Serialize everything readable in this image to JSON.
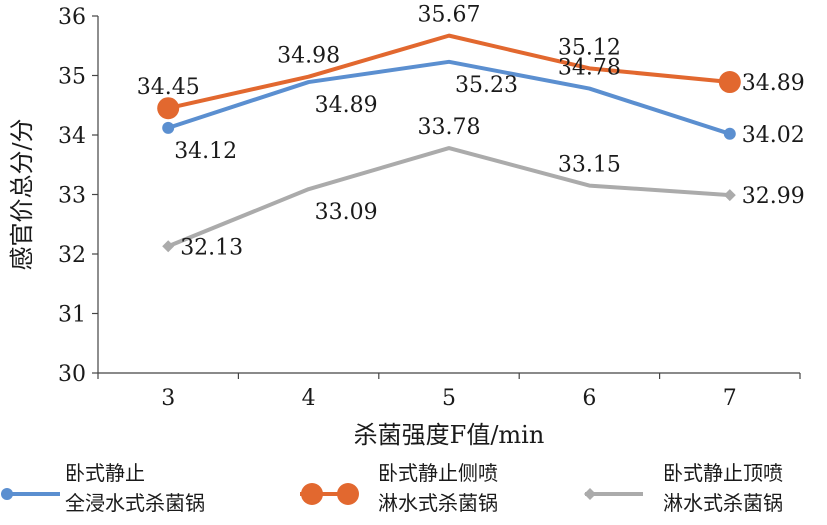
{
  "chart_data": {
    "type": "line",
    "xlabel": "杀菌强度F值/min",
    "ylabel": "感官价总分/分",
    "x": [
      3,
      4,
      5,
      6,
      7
    ],
    "ylim": [
      30,
      36
    ],
    "yticks": [
      30,
      31,
      32,
      33,
      34,
      35,
      36
    ],
    "grid": false,
    "legend_position": "bottom",
    "series": [
      {
        "name_lines": [
          "卧式静止",
          "全浸水式杀菌锅"
        ],
        "color": "#5b8fd0",
        "marker": "circle",
        "values": [
          34.12,
          34.89,
          35.23,
          34.78,
          34.02
        ],
        "labels": [
          "34.12",
          "34.89",
          "35.23",
          "34.78",
          "34.02"
        ],
        "label_pos": [
          "below",
          "below",
          "below",
          "above",
          "right"
        ]
      },
      {
        "name_lines": [
          "卧式静止侧喷",
          "淋水式杀菌锅"
        ],
        "color": "#e2682f",
        "marker": "circle-large",
        "values": [
          34.45,
          34.98,
          35.67,
          35.12,
          34.89
        ],
        "labels": [
          "34.45",
          "34.98",
          "35.67",
          "35.12",
          "34.89"
        ],
        "label_pos": [
          "above",
          "above",
          "above",
          "above",
          "right"
        ]
      },
      {
        "name_lines": [
          "卧式静止顶喷",
          "淋水式杀菌锅"
        ],
        "color": "#ababab",
        "marker": "diamond",
        "values": [
          32.13,
          33.09,
          33.78,
          33.15,
          32.99
        ],
        "labels": [
          "32.13",
          "33.09",
          "33.78",
          "33.15",
          "32.99"
        ],
        "label_pos": [
          "right",
          "below",
          "above",
          "above",
          "right"
        ]
      }
    ]
  }
}
